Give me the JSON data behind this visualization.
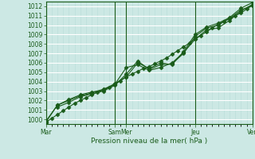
{
  "xlabel": "Pression niveau de la mer( hPa )",
  "background_color": "#cce8e4",
  "plot_bg_color": "#cce8e4",
  "grid_color_major": "#ffffff",
  "grid_color_minor": "#b8ddd9",
  "line_color": "#1a5c1a",
  "ylim": [
    999.5,
    1012.5
  ],
  "xlim": [
    0,
    108
  ],
  "yticks": [
    1000,
    1001,
    1002,
    1003,
    1004,
    1005,
    1006,
    1007,
    1008,
    1009,
    1010,
    1011,
    1012
  ],
  "xtick_positions": [
    0,
    36,
    42,
    78,
    108
  ],
  "xtick_labels": [
    "Mar",
    "Sam",
    "Mer",
    "Jeu",
    "Ven"
  ],
  "vline_positions": [
    0,
    36,
    42,
    78,
    108
  ],
  "line1_x": [
    0,
    3,
    6,
    9,
    12,
    15,
    18,
    21,
    24,
    27,
    30,
    33,
    36,
    39,
    42,
    45,
    48,
    51,
    54,
    57,
    60,
    63,
    66,
    69,
    72,
    75,
    78,
    81,
    84,
    87,
    90,
    93,
    96,
    99,
    102,
    105,
    108
  ],
  "line1_y": [
    999.7,
    1000.1,
    1000.5,
    1000.9,
    1001.3,
    1001.7,
    1002.0,
    1002.3,
    1002.6,
    1002.9,
    1003.1,
    1003.4,
    1003.7,
    1004.1,
    1004.5,
    1004.8,
    1005.1,
    1005.4,
    1005.6,
    1005.9,
    1006.2,
    1006.5,
    1006.9,
    1007.3,
    1007.7,
    1008.1,
    1008.5,
    1008.9,
    1009.3,
    1009.7,
    1010.1,
    1010.4,
    1010.7,
    1011.0,
    1011.3,
    1011.7,
    1012.1
  ],
  "line2_x": [
    0,
    6,
    12,
    18,
    24,
    30,
    36,
    42,
    48,
    54,
    60,
    66,
    72,
    78,
    84,
    90,
    96,
    102,
    108
  ],
  "line2_y": [
    999.7,
    1001.5,
    1002.0,
    1002.5,
    1002.8,
    1003.2,
    1003.7,
    1005.5,
    1005.8,
    1005.2,
    1005.5,
    1006.0,
    1007.1,
    1008.5,
    1009.5,
    1009.7,
    1010.5,
    1011.5,
    1012.2
  ],
  "line3_x": [
    0,
    6,
    12,
    18,
    24,
    30,
    36,
    42,
    48,
    54,
    60,
    66,
    72,
    78,
    84,
    90,
    96,
    102,
    108
  ],
  "line3_y": [
    999.8,
    1001.5,
    1002.1,
    1002.6,
    1002.9,
    1003.1,
    1003.8,
    1004.5,
    1006.0,
    1005.4,
    1006.0,
    1005.8,
    1007.2,
    1009.0,
    1009.8,
    1010.2,
    1010.8,
    1011.8,
    1012.4
  ],
  "line4_x": [
    6,
    12,
    18,
    24,
    30,
    36,
    42,
    48,
    54,
    60,
    66,
    72,
    78,
    84,
    90,
    96,
    102,
    108
  ],
  "line4_y": [
    1001.3,
    1001.8,
    1002.4,
    1002.7,
    1003.0,
    1003.6,
    1004.8,
    1006.2,
    1005.3,
    1005.8,
    1005.9,
    1007.0,
    1008.8,
    1009.7,
    1010.0,
    1010.7,
    1011.6,
    1012.1
  ],
  "marker_size": 2.5,
  "line_width": 0.8
}
